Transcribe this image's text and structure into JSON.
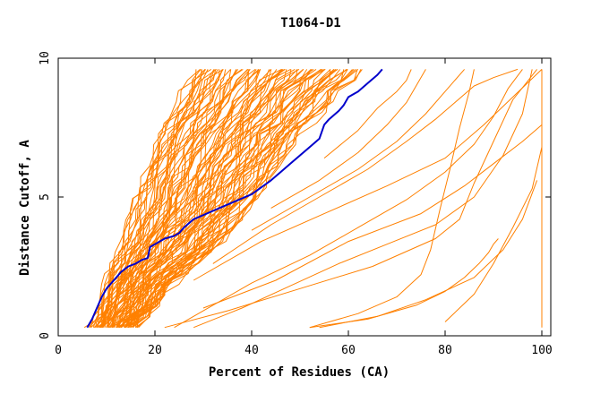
{
  "chart_data": {
    "type": "line",
    "title": "T1064-D1",
    "xlabel": "Percent of Residues (CA)",
    "ylabel": "Distance Cutoff, A",
    "xlim": [
      0,
      100
    ],
    "ylim": [
      0,
      10
    ],
    "x_ticks": [
      "0",
      "20",
      "40",
      "60",
      "80",
      "100"
    ],
    "y_ticks": [
      "0",
      "5",
      "10"
    ],
    "grid": false,
    "colors": {
      "other_models": "#ff8000",
      "highlight": "#0000cc",
      "axes": "#000000"
    },
    "highlight_series": {
      "x": [
        6,
        7,
        8,
        9,
        10,
        11.5,
        13,
        14.5,
        16,
        17.5,
        18.5,
        19,
        20,
        22,
        24,
        25,
        26,
        28,
        30,
        32,
        34,
        36,
        38,
        40,
        42,
        44,
        46,
        48,
        50,
        52,
        54,
        55,
        56,
        58,
        59,
        60,
        62,
        64,
        66,
        67
      ],
      "y": [
        0.3,
        0.6,
        1.0,
        1.4,
        1.7,
        2.0,
        2.3,
        2.5,
        2.6,
        2.75,
        2.8,
        3.2,
        3.3,
        3.5,
        3.6,
        3.7,
        3.9,
        4.2,
        4.35,
        4.5,
        4.65,
        4.8,
        4.95,
        5.1,
        5.35,
        5.6,
        5.9,
        6.2,
        6.5,
        6.8,
        7.1,
        7.6,
        7.8,
        8.1,
        8.3,
        8.6,
        8.8,
        9.1,
        9.4,
        9.6
      ]
    },
    "outlier_series": [
      {
        "x": [
          24,
          30,
          40,
          52,
          62,
          72,
          80,
          86,
          90,
          93,
          96
        ],
        "y": [
          0.3,
          0.9,
          1.9,
          2.9,
          3.9,
          4.9,
          5.9,
          6.9,
          7.9,
          8.9,
          9.6
        ]
      },
      {
        "x": [
          28,
          38,
          48,
          58,
          68,
          78,
          86,
          92,
          96,
          98
        ],
        "y": [
          0.3,
          1.0,
          1.8,
          2.6,
          3.3,
          4.0,
          5.0,
          6.5,
          8.0,
          9.6
        ]
      },
      {
        "x": [
          22,
          35,
          50,
          65,
          78,
          83,
          86,
          90,
          94,
          99
        ],
        "y": [
          0.3,
          0.9,
          1.7,
          2.5,
          3.5,
          4.2,
          5.5,
          7.0,
          8.5,
          9.6
        ]
      },
      {
        "x": [
          52,
          62,
          70,
          75,
          77,
          79,
          81,
          83,
          85,
          86
        ],
        "y": [
          0.3,
          0.8,
          1.4,
          2.2,
          3.1,
          4.6,
          6.0,
          7.5,
          8.8,
          9.6
        ]
      },
      {
        "x": [
          52,
          64,
          74,
          80,
          84,
          87,
          89,
          90,
          91
        ],
        "y": [
          0.3,
          0.6,
          1.1,
          1.6,
          2.1,
          2.6,
          3.0,
          3.3,
          3.5
        ]
      },
      {
        "x": [
          54,
          66,
          76,
          86,
          92,
          96,
          99
        ],
        "y": [
          0.3,
          0.7,
          1.3,
          2.1,
          3.1,
          4.2,
          5.6
        ]
      },
      {
        "x": [
          80,
          86,
          90,
          94,
          98,
          100
        ],
        "y": [
          0.5,
          1.5,
          2.6,
          3.9,
          5.3,
          6.8
        ]
      },
      {
        "x": [
          30,
          45,
          60,
          75,
          84,
          90,
          96,
          100
        ],
        "y": [
          1.0,
          2.0,
          3.4,
          4.4,
          5.4,
          6.2,
          7.0,
          7.6
        ]
      },
      {
        "x": [
          28,
          42,
          55,
          68,
          80,
          88,
          94,
          100
        ],
        "y": [
          2.0,
          3.4,
          4.4,
          5.4,
          6.4,
          7.6,
          8.6,
          9.6
        ]
      },
      {
        "x": [
          32,
          44,
          54,
          64,
          72,
          78,
          82,
          86,
          90,
          95
        ],
        "y": [
          2.6,
          4.0,
          5.0,
          6.0,
          7.0,
          7.8,
          8.4,
          9.0,
          9.3,
          9.6
        ]
      },
      {
        "x": [
          40,
          52,
          62,
          70,
          76,
          80,
          84
        ],
        "y": [
          3.8,
          5.0,
          6.0,
          7.0,
          8.0,
          8.8,
          9.6
        ]
      },
      {
        "x": [
          44,
          54,
          62,
          68,
          72,
          74,
          76
        ],
        "y": [
          4.6,
          5.6,
          6.6,
          7.6,
          8.4,
          9.0,
          9.6
        ]
      },
      {
        "x": [
          55,
          62,
          66,
          70,
          72,
          73
        ],
        "y": [
          6.4,
          7.4,
          8.2,
          8.8,
          9.2,
          9.6
        ]
      },
      {
        "x": [
          100,
          100
        ],
        "y": [
          0.3,
          9.6
        ]
      }
    ],
    "bundle": {
      "series_count": 90,
      "left_edge": {
        "y": [
          0.3,
          1.0,
          2.0,
          3.0,
          4.0,
          5.0,
          6.0,
          7.0,
          8.0,
          9.0,
          9.6
        ],
        "x": [
          7,
          8,
          10,
          12,
          14,
          16,
          18,
          20,
          23,
          26,
          28
        ]
      },
      "right_edge": {
        "y": [
          0.3,
          1.0,
          2.0,
          3.0,
          4.0,
          5.0,
          6.0,
          7.0,
          8.0,
          9.0,
          9.6
        ],
        "x": [
          16,
          20,
          24,
          32,
          37,
          41,
          45,
          49,
          54,
          59,
          63
        ]
      }
    }
  }
}
